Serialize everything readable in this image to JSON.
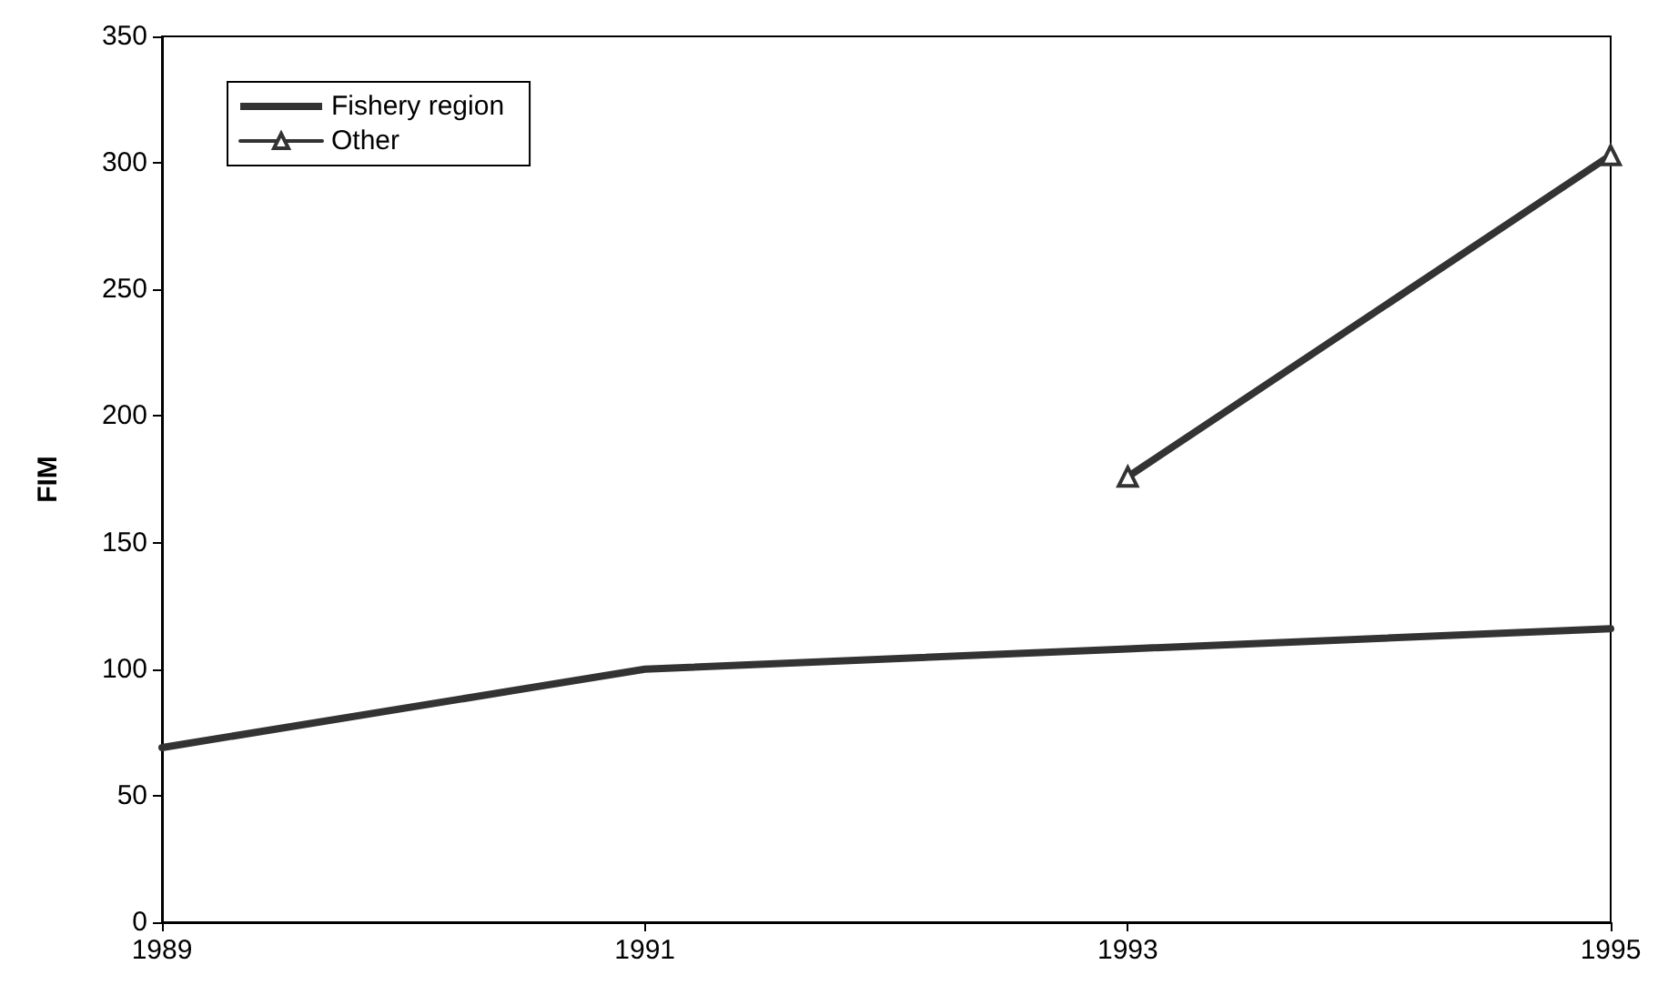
{
  "chart_data": {
    "type": "line",
    "ylabel": "FIM",
    "x": [
      1989,
      1991,
      1993,
      1995
    ],
    "series": [
      {
        "name": "Fishery region",
        "color": "#333333",
        "values": [
          69,
          100,
          108,
          116
        ],
        "marker": "none"
      },
      {
        "name": "Other",
        "color": "#333333",
        "values": [
          null,
          null,
          176,
          303
        ],
        "marker": "triangle"
      }
    ],
    "xlim": [
      1989,
      1995
    ],
    "xticks": [
      1989,
      1991,
      1993,
      1995
    ],
    "ylim": [
      0,
      350
    ],
    "yticks": [
      0,
      50,
      100,
      150,
      200,
      250,
      300,
      350
    ],
    "grid": false,
    "legend": "top left"
  }
}
